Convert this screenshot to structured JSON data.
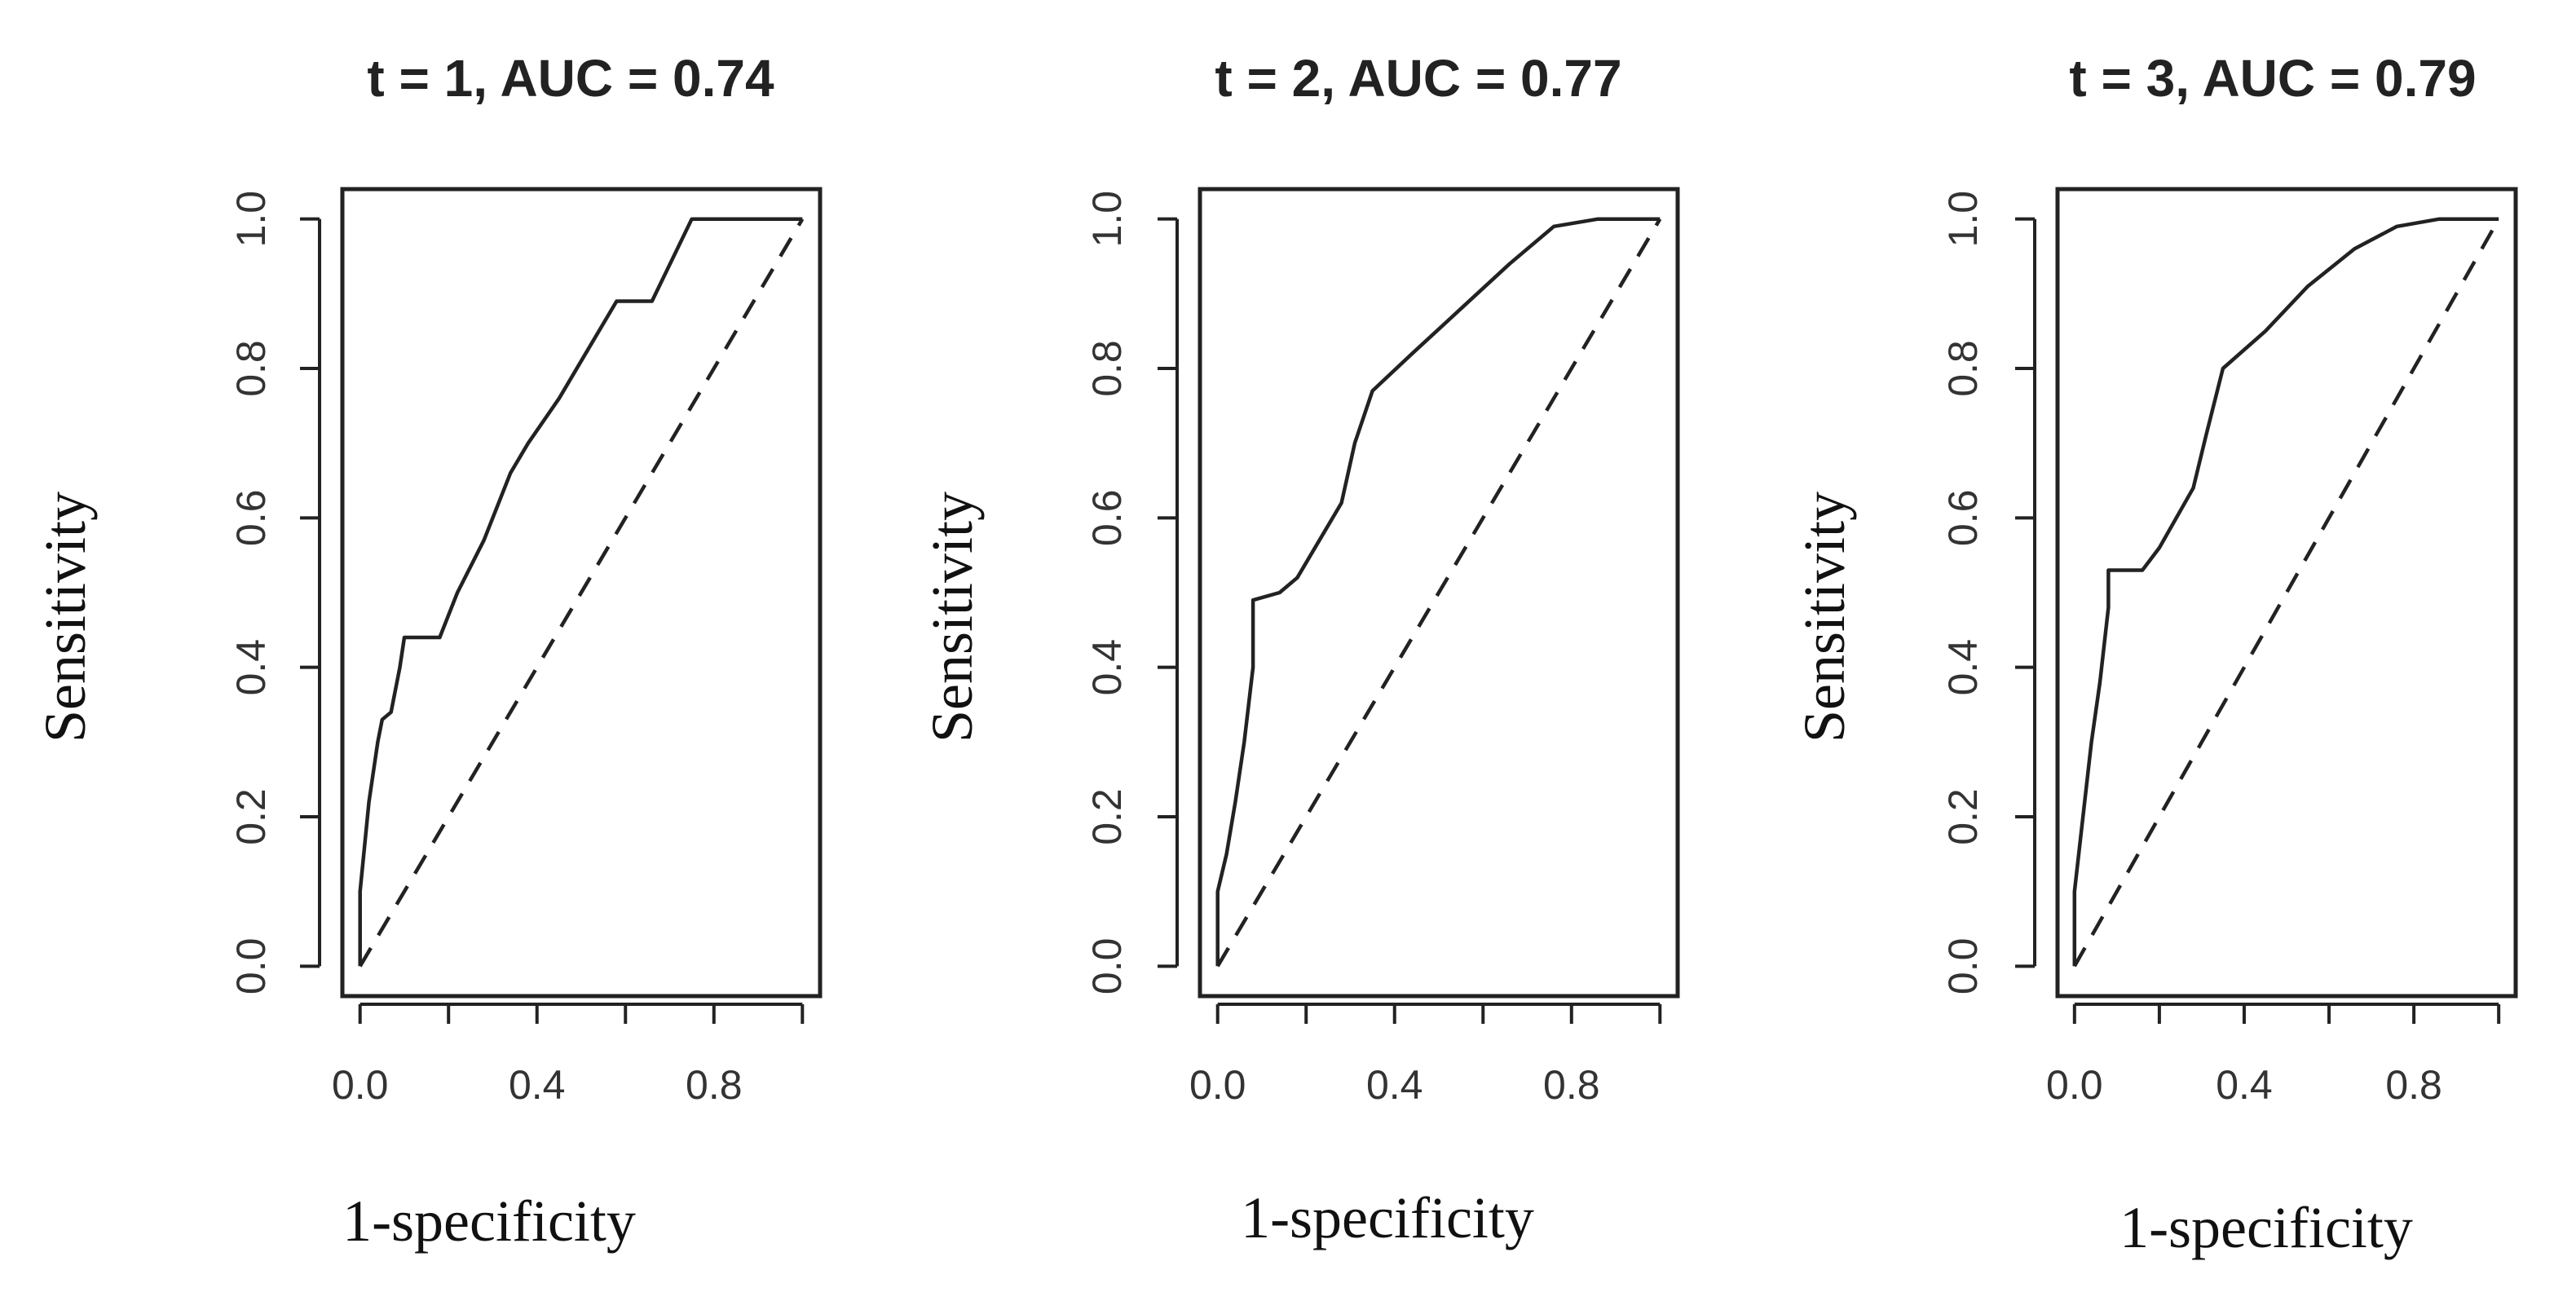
{
  "chart_data": [
    {
      "type": "line",
      "title": "t = 1, AUC = 0.74",
      "xlabel": "1-specificity",
      "ylabel": "Sensitivity",
      "xlim": [
        0,
        1
      ],
      "ylim": [
        0,
        1
      ],
      "xticks": [
        "0.0",
        "0.4",
        "0.8"
      ],
      "yticks": [
        "0.0",
        "0.2",
        "0.4",
        "0.6",
        "0.8",
        "1.0"
      ],
      "series": [
        {
          "name": "ROC",
          "x": [
            0.0,
            0.0,
            0.02,
            0.04,
            0.05,
            0.07,
            0.09,
            0.1,
            0.18,
            0.22,
            0.28,
            0.34,
            0.38,
            0.45,
            0.5,
            0.58,
            0.66,
            0.75,
            0.8,
            0.9,
            1.0
          ],
          "y": [
            0.0,
            0.1,
            0.22,
            0.3,
            0.33,
            0.34,
            0.4,
            0.44,
            0.44,
            0.5,
            0.57,
            0.66,
            0.7,
            0.76,
            0.81,
            0.89,
            0.89,
            1.0,
            1.0,
            1.0,
            1.0
          ]
        },
        {
          "name": "Reference",
          "style": "dashed",
          "x": [
            0,
            1
          ],
          "y": [
            0,
            1
          ]
        }
      ]
    },
    {
      "type": "line",
      "title": "t = 2, AUC = 0.77",
      "xlabel": "1-specificity",
      "ylabel": "Sensitivity",
      "xlim": [
        0,
        1
      ],
      "ylim": [
        0,
        1
      ],
      "xticks": [
        "0.0",
        "0.4",
        "0.8"
      ],
      "yticks": [
        "0.0",
        "0.2",
        "0.4",
        "0.6",
        "0.8",
        "1.0"
      ],
      "series": [
        {
          "name": "ROC",
          "x": [
            0.0,
            0.0,
            0.02,
            0.04,
            0.06,
            0.08,
            0.08,
            0.14,
            0.18,
            0.24,
            0.28,
            0.31,
            0.35,
            0.44,
            0.55,
            0.66,
            0.76,
            0.86,
            0.9,
            1.0
          ],
          "y": [
            0.0,
            0.1,
            0.15,
            0.22,
            0.3,
            0.4,
            0.49,
            0.5,
            0.52,
            0.58,
            0.62,
            0.7,
            0.77,
            0.82,
            0.88,
            0.94,
            0.99,
            1.0,
            1.0,
            1.0
          ]
        },
        {
          "name": "Reference",
          "style": "dashed",
          "x": [
            0,
            1
          ],
          "y": [
            0,
            1
          ]
        }
      ]
    },
    {
      "type": "line",
      "title": "t = 3, AUC = 0.79",
      "xlabel": "1-specificity",
      "ylabel": "Sensitivity",
      "xlim": [
        0,
        1
      ],
      "ylim": [
        0,
        1
      ],
      "xticks": [
        "0.0",
        "0.4",
        "0.8"
      ],
      "yticks": [
        "0.0",
        "0.2",
        "0.4",
        "0.6",
        "0.8",
        "1.0"
      ],
      "series": [
        {
          "name": "ROC",
          "x": [
            0.0,
            0.0,
            0.02,
            0.04,
            0.06,
            0.08,
            0.08,
            0.16,
            0.2,
            0.25,
            0.28,
            0.31,
            0.35,
            0.45,
            0.55,
            0.66,
            0.76,
            0.86,
            0.97,
            1.0
          ],
          "y": [
            0.0,
            0.1,
            0.2,
            0.3,
            0.38,
            0.48,
            0.53,
            0.53,
            0.56,
            0.61,
            0.64,
            0.71,
            0.8,
            0.85,
            0.91,
            0.96,
            0.99,
            1.0,
            1.0,
            1.0
          ]
        },
        {
          "name": "Reference",
          "style": "dashed",
          "x": [
            0,
            1
          ],
          "y": [
            0,
            1
          ]
        }
      ]
    }
  ]
}
